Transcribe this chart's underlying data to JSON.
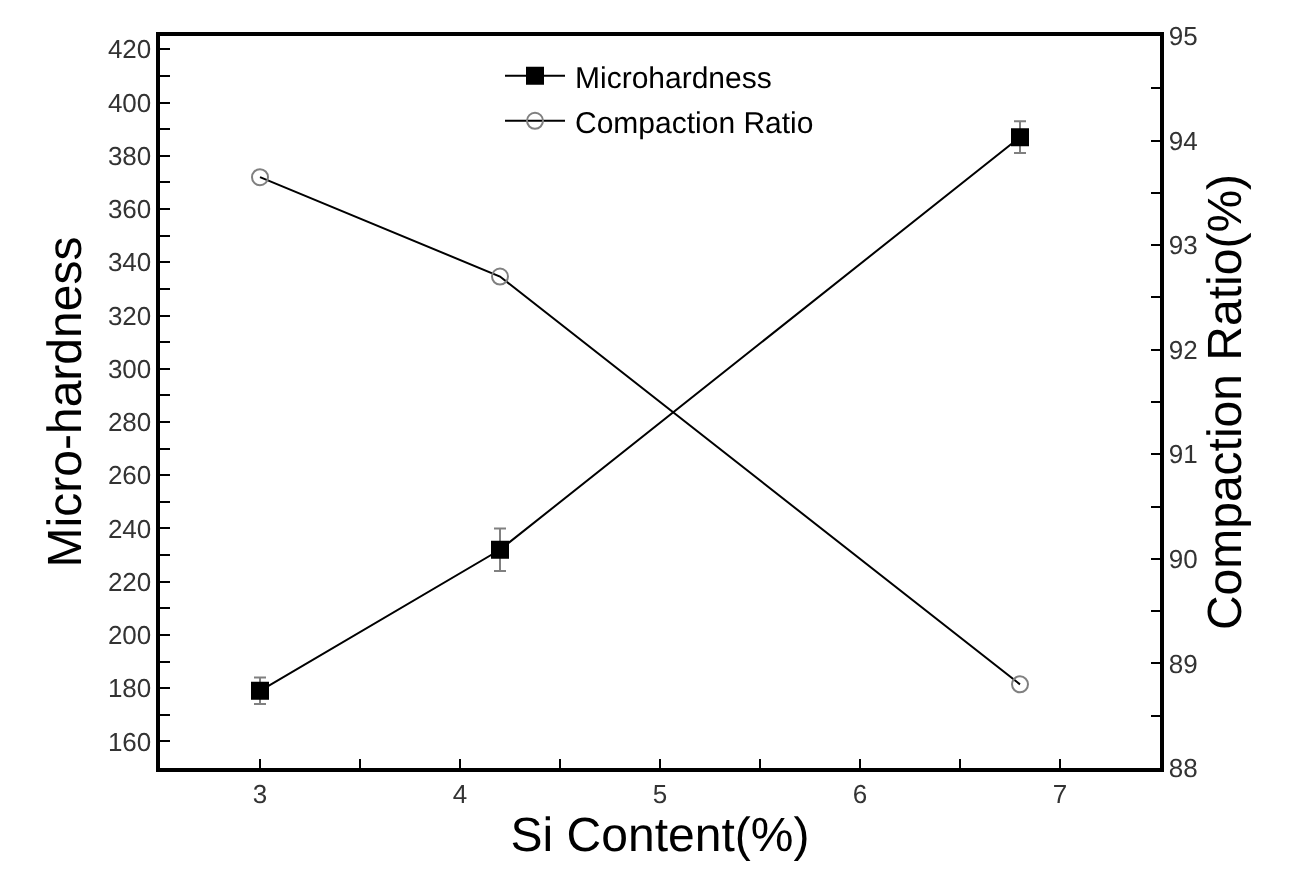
{
  "chart_data": {
    "type": "line",
    "xlabel": "Si Content(%)",
    "ylabel": "Micro-hardness",
    "y2label": "Compaction Ratio(%)",
    "x": [
      3,
      4.2,
      6.8
    ],
    "xlim": [
      2.5,
      7.5
    ],
    "xticks": [
      3,
      {
        "value": 3.5,
        "label": null
      },
      4,
      {
        "value": 4.5,
        "label": null
      },
      5,
      {
        "value": 5.5,
        "label": null
      },
      6,
      {
        "value": 6.5,
        "label": null
      },
      7
    ],
    "ylim": [
      150,
      425
    ],
    "yticks": [
      160,
      {
        "value": 170,
        "label": null
      },
      180,
      {
        "value": 190,
        "label": null
      },
      200,
      {
        "value": 210,
        "label": null
      },
      220,
      {
        "value": 230,
        "label": null
      },
      240,
      {
        "value": 250,
        "label": null
      },
      260,
      {
        "value": 270,
        "label": null
      },
      280,
      {
        "value": 290,
        "label": null
      },
      300,
      {
        "value": 310,
        "label": null
      },
      320,
      {
        "value": 330,
        "label": null
      },
      340,
      {
        "value": 350,
        "label": null
      },
      360,
      {
        "value": 370,
        "label": null
      },
      380,
      {
        "value": 390,
        "label": null
      },
      400,
      {
        "value": 410,
        "label": null
      },
      420
    ],
    "y2lim": [
      88,
      95
    ],
    "y2ticks": [
      88,
      {
        "value": 88.5,
        "label": null
      },
      89,
      {
        "value": 89.5,
        "label": null
      },
      90,
      {
        "value": 90.5,
        "label": null
      },
      91,
      {
        "value": 91.5,
        "label": null
      },
      92,
      {
        "value": 92.5,
        "label": null
      },
      93,
      {
        "value": 93.5,
        "label": null
      },
      94,
      {
        "value": 94.5,
        "label": null
      },
      95
    ],
    "series": [
      {
        "name": "Microhardness",
        "color": "#000000",
        "values": [
          179,
          232,
          387
        ],
        "errors": [
          5,
          8,
          6
        ],
        "marker": "square"
      },
      {
        "name": "Compaction Ratio",
        "color": "#000000",
        "values": [
          93.65,
          92.7,
          88.8
        ],
        "axis": "y2",
        "marker": "circle-open"
      }
    ],
    "legend": "top"
  }
}
